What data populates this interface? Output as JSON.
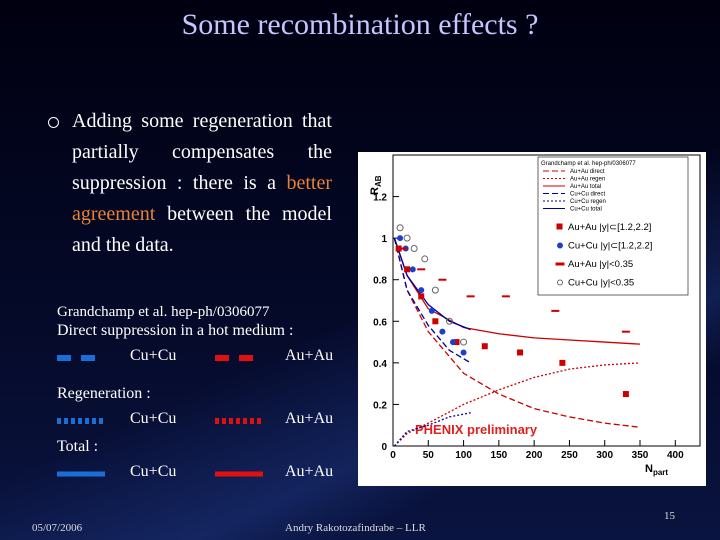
{
  "title": "Some recombination effects ?",
  "bullet": {
    "before": "Adding some regeneration that partially compensates the suppression : there is a ",
    "highlight": "better agreement",
    "after": " between the model and the data."
  },
  "reference": "Grandchamp et al. hep-ph/0306077",
  "legend": [
    {
      "heading": "Direct suppression in a hot medium :",
      "items": [
        {
          "name": "Cu+Cu",
          "color": "#1a6fd6",
          "style": "dashed"
        },
        {
          "name": "Au+Au",
          "color": "#e01010",
          "style": "dashed"
        }
      ]
    },
    {
      "heading": "Regeneration :",
      "items": [
        {
          "name": "Cu+Cu",
          "color": "#1a6fd6",
          "style": "dotted"
        },
        {
          "name": "Au+Au",
          "color": "#e01010",
          "style": "dotted"
        }
      ]
    },
    {
      "heading": "Total :",
      "items": [
        {
          "name": "Cu+Cu",
          "color": "#1a6fd6",
          "style": "solid"
        },
        {
          "name": "Au+Au",
          "color": "#e01010",
          "style": "solid"
        }
      ]
    }
  ],
  "chart_data": {
    "type": "scatter",
    "ylabel": "R",
    "ylabel_sub": "AB",
    "xlabel": "N",
    "xlabel_sub": "part",
    "annotation": "PHENIX preliminary",
    "legend_title": "Grandchamp et al. hep-ph/0306077",
    "xlim": [
      0,
      435
    ],
    "ylim": [
      0,
      1.4
    ],
    "xticks": [
      0,
      50,
      100,
      150,
      200,
      250,
      300,
      350,
      400
    ],
    "yticks": [
      0,
      0.2,
      0.4,
      0.6,
      0.8,
      1,
      1.2
    ],
    "series": [
      {
        "name": "Au+Au direct",
        "mode": "line",
        "dash": "dashed",
        "color": "#cc0000",
        "x": [
          2,
          20,
          50,
          100,
          150,
          200,
          250,
          300,
          350
        ],
        "values": [
          1.0,
          0.75,
          0.55,
          0.35,
          0.25,
          0.18,
          0.14,
          0.11,
          0.09
        ]
      },
      {
        "name": "Au+Au regen",
        "mode": "line",
        "dash": "dotted",
        "color": "#cc0000",
        "x": [
          2,
          20,
          50,
          100,
          150,
          200,
          250,
          300,
          350
        ],
        "values": [
          0.0,
          0.06,
          0.11,
          0.2,
          0.27,
          0.33,
          0.37,
          0.39,
          0.4
        ]
      },
      {
        "name": "Au+Au total",
        "mode": "line",
        "dash": "solid",
        "color": "#cc0000",
        "x": [
          2,
          20,
          50,
          100,
          150,
          200,
          250,
          300,
          350
        ],
        "values": [
          1.0,
          0.82,
          0.66,
          0.57,
          0.54,
          0.52,
          0.51,
          0.5,
          0.49
        ]
      },
      {
        "name": "Cu+Cu direct",
        "mode": "line",
        "dash": "dashed",
        "color": "#000099",
        "x": [
          2,
          20,
          50,
          80,
          110
        ],
        "values": [
          1.0,
          0.75,
          0.58,
          0.46,
          0.4
        ]
      },
      {
        "name": "Cu+Cu regen",
        "mode": "line",
        "dash": "dotted",
        "color": "#000099",
        "x": [
          2,
          20,
          50,
          80,
          110
        ],
        "values": [
          0.0,
          0.07,
          0.1,
          0.14,
          0.16
        ]
      },
      {
        "name": "Cu+Cu total",
        "mode": "line",
        "dash": "solid",
        "color": "#000099",
        "x": [
          2,
          20,
          50,
          80,
          110
        ],
        "values": [
          1.0,
          0.82,
          0.68,
          0.6,
          0.56
        ]
      },
      {
        "name": "Au+Au |y|⊂[1.2,2.2]",
        "mode": "markers",
        "marker": "square",
        "color": "#cc0000",
        "x": [
          8,
          20,
          40,
          60,
          90,
          130,
          180,
          240,
          330
        ],
        "values": [
          0.95,
          0.85,
          0.72,
          0.6,
          0.5,
          0.48,
          0.45,
          0.4,
          0.25
        ]
      },
      {
        "name": "Cu+Cu |y|⊂[1.2,2.2]",
        "mode": "markers",
        "marker": "circle",
        "color": "#1a3fd0",
        "x": [
          10,
          18,
          28,
          40,
          55,
          70,
          85,
          100
        ],
        "values": [
          1.0,
          0.95,
          0.85,
          0.75,
          0.65,
          0.55,
          0.5,
          0.45
        ]
      },
      {
        "name": "Au+Au |y|<0.35",
        "mode": "markers",
        "marker": "dash",
        "color": "#cc0000",
        "x": [
          15,
          40,
          70,
          110,
          160,
          230,
          330
        ],
        "values": [
          0.95,
          0.85,
          0.8,
          0.72,
          0.72,
          0.65,
          0.55
        ]
      },
      {
        "name": "Cu+Cu |y|<0.35",
        "mode": "markers",
        "marker": "open-circle",
        "color": "#666666",
        "x": [
          10,
          20,
          30,
          45,
          60,
          80,
          100
        ],
        "values": [
          1.05,
          1.0,
          0.95,
          0.9,
          0.75,
          0.6,
          0.5
        ]
      }
    ]
  },
  "footer": {
    "date": "05/07/2006",
    "author": "Andry Rakotozafindrabe – LLR",
    "page": "15"
  }
}
